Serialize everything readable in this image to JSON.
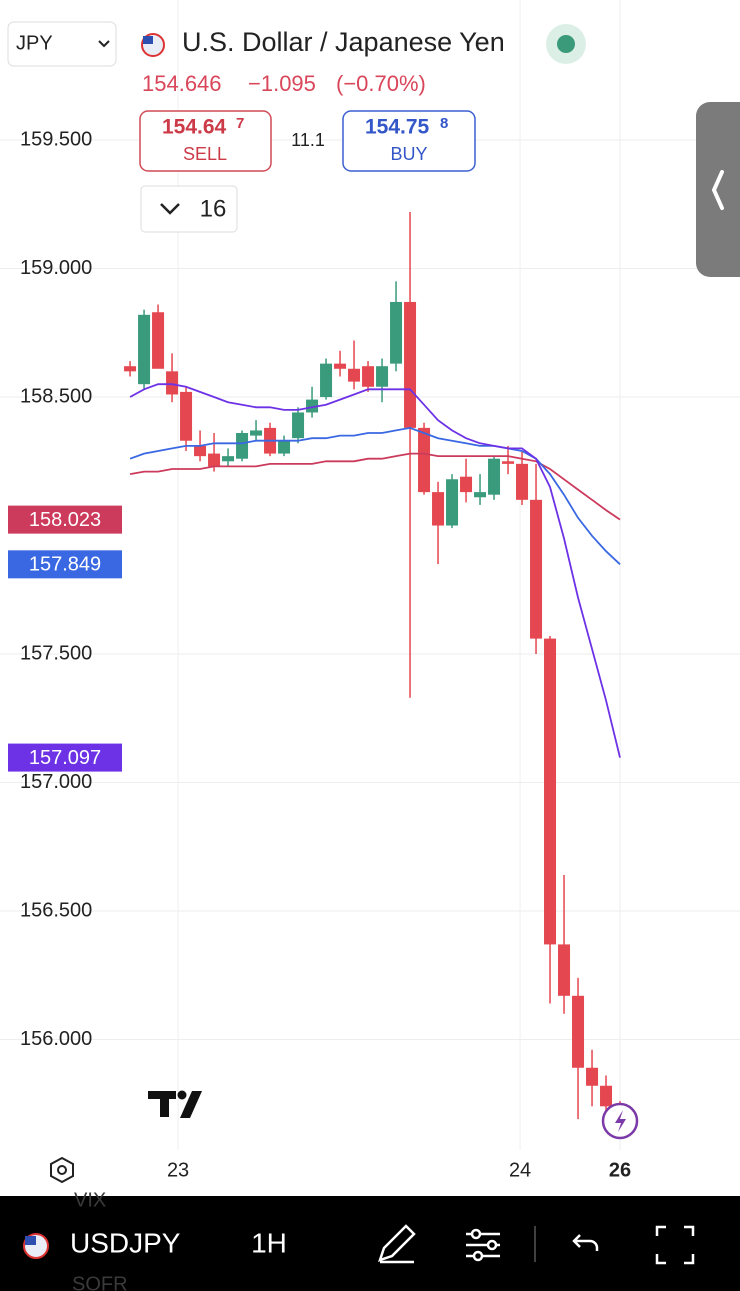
{
  "header": {
    "currency_select": "JPY",
    "title": "U.S. Dollar / Japanese Yen",
    "last_price": "154.646",
    "change": "−1.095",
    "change_pct": "(−0.70%)",
    "sell": {
      "price": "154.64",
      "pip": "7",
      "label": "SELL"
    },
    "spread": "11.1",
    "buy": {
      "price": "154.75",
      "pip": "8",
      "label": "BUY"
    },
    "interval_select": "16"
  },
  "toolbar": {
    "symbol": "USDJPY",
    "interval": "1H",
    "ghost": [
      "VIX",
      "SOFR"
    ]
  },
  "chart_data": {
    "type": "candlestick",
    "x": [
      0,
      1,
      2,
      3,
      4,
      5,
      6,
      7,
      8,
      9,
      10,
      11,
      12,
      13,
      14,
      15,
      16,
      17,
      18,
      19,
      20,
      21,
      22,
      23,
      24,
      25,
      26,
      27,
      28,
      29,
      30,
      31,
      32,
      33,
      34,
      35
    ],
    "open": [
      158.62,
      158.55,
      158.83,
      158.6,
      158.52,
      158.31,
      158.28,
      158.25,
      158.26,
      158.35,
      158.38,
      158.28,
      158.34,
      158.44,
      158.5,
      158.63,
      158.61,
      158.62,
      158.54,
      158.63,
      158.87,
      158.38,
      158.13,
      158.0,
      158.19,
      158.11,
      158.12,
      158.25,
      158.24,
      158.1,
      157.56,
      156.37,
      156.17,
      155.89,
      155.82,
      155.74
    ],
    "high": [
      158.64,
      158.84,
      158.86,
      158.67,
      158.54,
      158.37,
      158.36,
      158.3,
      158.37,
      158.41,
      158.4,
      158.35,
      158.46,
      158.54,
      158.65,
      158.68,
      158.72,
      158.64,
      158.65,
      158.95,
      159.22,
      158.4,
      158.17,
      158.2,
      158.26,
      158.2,
      158.27,
      158.31,
      158.29,
      158.24,
      157.57,
      156.64,
      156.24,
      155.96,
      155.86,
      155.76
    ],
    "low": [
      158.58,
      158.53,
      158.63,
      158.48,
      158.29,
      158.25,
      158.21,
      158.23,
      158.25,
      158.33,
      158.27,
      158.27,
      158.32,
      158.42,
      158.49,
      158.58,
      158.53,
      158.52,
      158.48,
      158.6,
      157.33,
      158.12,
      157.85,
      157.99,
      158.09,
      158.08,
      158.1,
      158.2,
      158.08,
      157.5,
      156.14,
      156.1,
      155.69,
      155.74,
      155.7,
      155.7
    ],
    "close": [
      158.6,
      158.82,
      158.61,
      158.51,
      158.33,
      158.27,
      158.23,
      158.27,
      158.36,
      158.37,
      158.28,
      158.33,
      158.44,
      158.49,
      158.63,
      158.61,
      158.56,
      158.54,
      158.62,
      158.87,
      158.38,
      158.13,
      158.0,
      158.18,
      158.13,
      158.13,
      158.26,
      158.24,
      158.1,
      157.56,
      156.37,
      156.17,
      155.89,
      155.82,
      155.74,
      155.72
    ],
    "up_color": "#3a9a7c",
    "down_color": "#e4474f",
    "lines": [
      {
        "color": "#cc3a5c",
        "values": [
          158.2,
          158.21,
          158.21,
          158.22,
          158.22,
          158.22,
          158.23,
          158.23,
          158.23,
          158.23,
          158.24,
          158.24,
          158.24,
          158.24,
          158.25,
          158.25,
          158.25,
          158.26,
          158.26,
          158.27,
          158.28,
          158.28,
          158.27,
          158.27,
          158.27,
          158.27,
          158.27,
          158.27,
          158.26,
          158.25,
          158.22,
          158.18,
          158.14,
          158.1,
          158.06,
          158.023
        ]
      },
      {
        "color": "#3a68e2",
        "values": [
          158.26,
          158.28,
          158.29,
          158.3,
          158.31,
          158.31,
          158.32,
          158.32,
          158.32,
          158.33,
          158.33,
          158.33,
          158.33,
          158.34,
          158.34,
          158.35,
          158.35,
          158.36,
          158.36,
          158.37,
          158.38,
          158.36,
          158.34,
          158.33,
          158.32,
          158.31,
          158.31,
          158.3,
          158.29,
          158.26,
          158.2,
          158.12,
          158.03,
          157.96,
          157.9,
          157.849
        ]
      },
      {
        "color": "#6d32e6",
        "values": [
          158.5,
          158.53,
          158.55,
          158.55,
          158.54,
          158.52,
          158.5,
          158.48,
          158.47,
          158.46,
          158.46,
          158.45,
          158.45,
          158.46,
          158.47,
          158.49,
          158.51,
          158.53,
          158.53,
          158.53,
          158.53,
          158.47,
          158.41,
          158.37,
          158.34,
          158.32,
          158.31,
          158.3,
          158.3,
          158.26,
          158.15,
          157.95,
          157.72,
          157.52,
          157.32,
          157.097
        ]
      }
    ],
    "ylim": [
      155.57,
      160.045
    ],
    "yticks": [
      {
        "value": 156,
        "label": "156.000"
      },
      {
        "value": 156.5,
        "label": "156.500"
      },
      {
        "value": 157,
        "label": "157.000"
      },
      {
        "value": 157.5,
        "label": "157.500"
      },
      {
        "value": 158.5,
        "label": "158.500"
      },
      {
        "value": 159,
        "label": "159.000"
      },
      {
        "value": 159.5,
        "label": "159.500"
      }
    ],
    "xlim": [
      -9.29,
      43.57
    ],
    "xticks": [
      {
        "value": 3.43,
        "label": "23"
      },
      {
        "value": 27.86,
        "label": "24"
      },
      {
        "value": 35,
        "label": "26"
      }
    ],
    "grid": true
  }
}
